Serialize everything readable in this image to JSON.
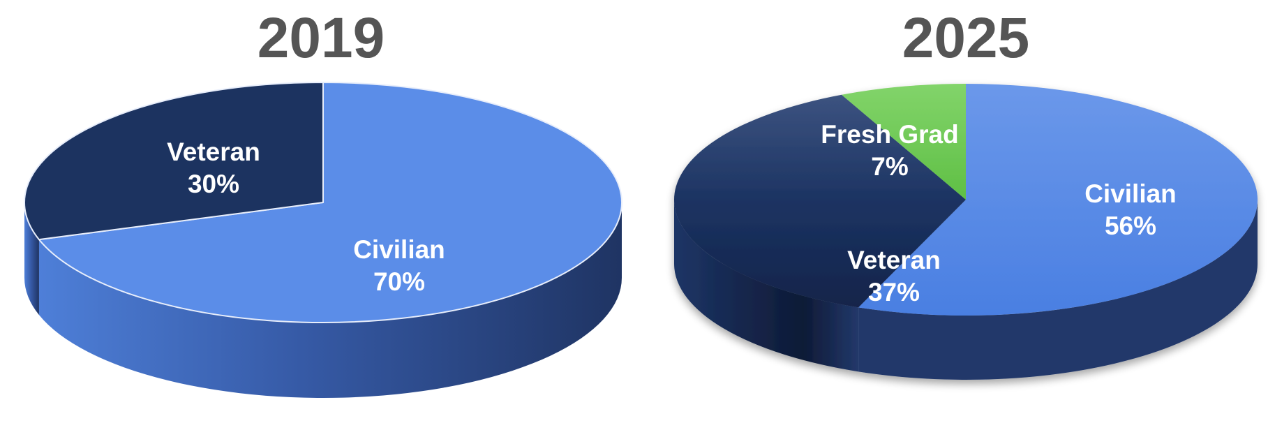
{
  "chart_data": [
    {
      "type": "pie",
      "title": "2019",
      "three_d": true,
      "start_angle_deg": -90,
      "direction": "clockwise",
      "slices": [
        {
          "label": "Civilian",
          "value": 70,
          "value_label": "70%",
          "color": "#5b8de8",
          "side_color": "#3d5fae"
        },
        {
          "label": "Veteran",
          "value": 30,
          "value_label": "30%",
          "color": "#1c3360",
          "side_color": "#14264a"
        }
      ]
    },
    {
      "type": "pie",
      "title": "2025",
      "three_d": true,
      "start_angle_deg": -90,
      "direction": "clockwise",
      "slices": [
        {
          "label": "Civilian",
          "value": 56,
          "value_label": "56%",
          "color": "#5488e6",
          "side_color": "#22386a"
        },
        {
          "label": "Veteran",
          "value": 37,
          "value_label": "37%",
          "color": "#1b3262",
          "side_color": "#0f1d3a"
        },
        {
          "label": "Fresh Grad",
          "value": 7,
          "value_label": "7%",
          "color": "#6fcb57",
          "side_color": "#4f9a3e"
        }
      ]
    }
  ]
}
